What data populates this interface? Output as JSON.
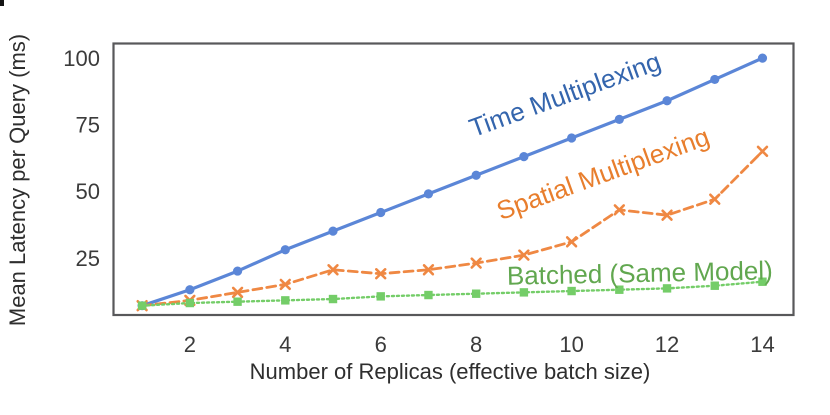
{
  "page": {
    "background": "#ffffff"
  },
  "chart_data": {
    "type": "line",
    "title": "",
    "xlabel": "Number of Replicas (effective batch size)",
    "ylabel": "Mean Latency per Query (ms)",
    "x": [
      1,
      2,
      3,
      4,
      5,
      6,
      7,
      8,
      9,
      10,
      11,
      12,
      13,
      14
    ],
    "xticks": [
      2,
      4,
      6,
      8,
      10,
      12,
      14
    ],
    "yticks": [
      25,
      50,
      75,
      100
    ],
    "xlim": [
      0.4,
      14.65
    ],
    "ylim": [
      3.5,
      105.5
    ],
    "grid": false,
    "legend": "inline-rotated-labels",
    "series": [
      {
        "name": "Time Multiplexing",
        "color": "#5b86d7",
        "label_color": "#3465ad",
        "line_style": "solid",
        "marker": "circle",
        "values": [
          7,
          13,
          20,
          28,
          35,
          42,
          49,
          56,
          63,
          70,
          77,
          84,
          92,
          100
        ]
      },
      {
        "name": "Spatial Multiplexing",
        "color": "#ef8843",
        "label_color": "#e87e2d",
        "line_style": "dashed",
        "marker": "x",
        "values": [
          7,
          9,
          12,
          15,
          20.5,
          19,
          20.5,
          23,
          26,
          31,
          43,
          41,
          47,
          65
        ]
      },
      {
        "name": "Batched (Same Model)",
        "color": "#74cd68",
        "label_color": "#61a74f",
        "line_style": "dotted",
        "marker": "square",
        "values": [
          7,
          8,
          8.5,
          9,
          9.5,
          10.5,
          11,
          11.5,
          12,
          12.5,
          13,
          13.5,
          14.5,
          16
        ]
      }
    ]
  },
  "axis_style": {
    "frame_color": "#58585a",
    "tick_label_color": "#3b3b3b",
    "axis_label_color": "#2e2e2e"
  }
}
